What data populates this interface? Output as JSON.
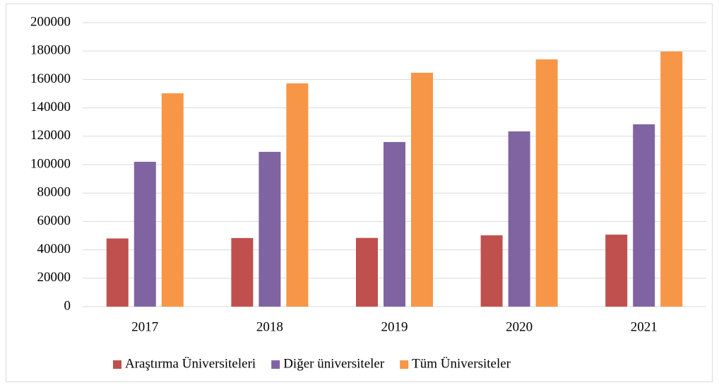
{
  "chart_data": {
    "type": "bar",
    "categories": [
      "2017",
      "2018",
      "2019",
      "2020",
      "2021"
    ],
    "series": [
      {
        "name": "Araştırma Üniversiteleri",
        "color": "#c0504d",
        "values": [
          48000,
          48300,
          48400,
          50200,
          50700
        ]
      },
      {
        "name": "Diğer üniversiteler",
        "color": "#8064a2",
        "values": [
          102000,
          109000,
          115900,
          123400,
          128400
        ]
      },
      {
        "name": "Tüm Üniversiteler",
        "color": "#f79646",
        "values": [
          150200,
          157200,
          164700,
          174100,
          179600
        ]
      }
    ],
    "ylim": [
      0,
      200000
    ],
    "yticks": [
      0,
      20000,
      40000,
      60000,
      80000,
      100000,
      120000,
      140000,
      160000,
      180000,
      200000
    ],
    "grid": true,
    "legend": "bottom"
  }
}
